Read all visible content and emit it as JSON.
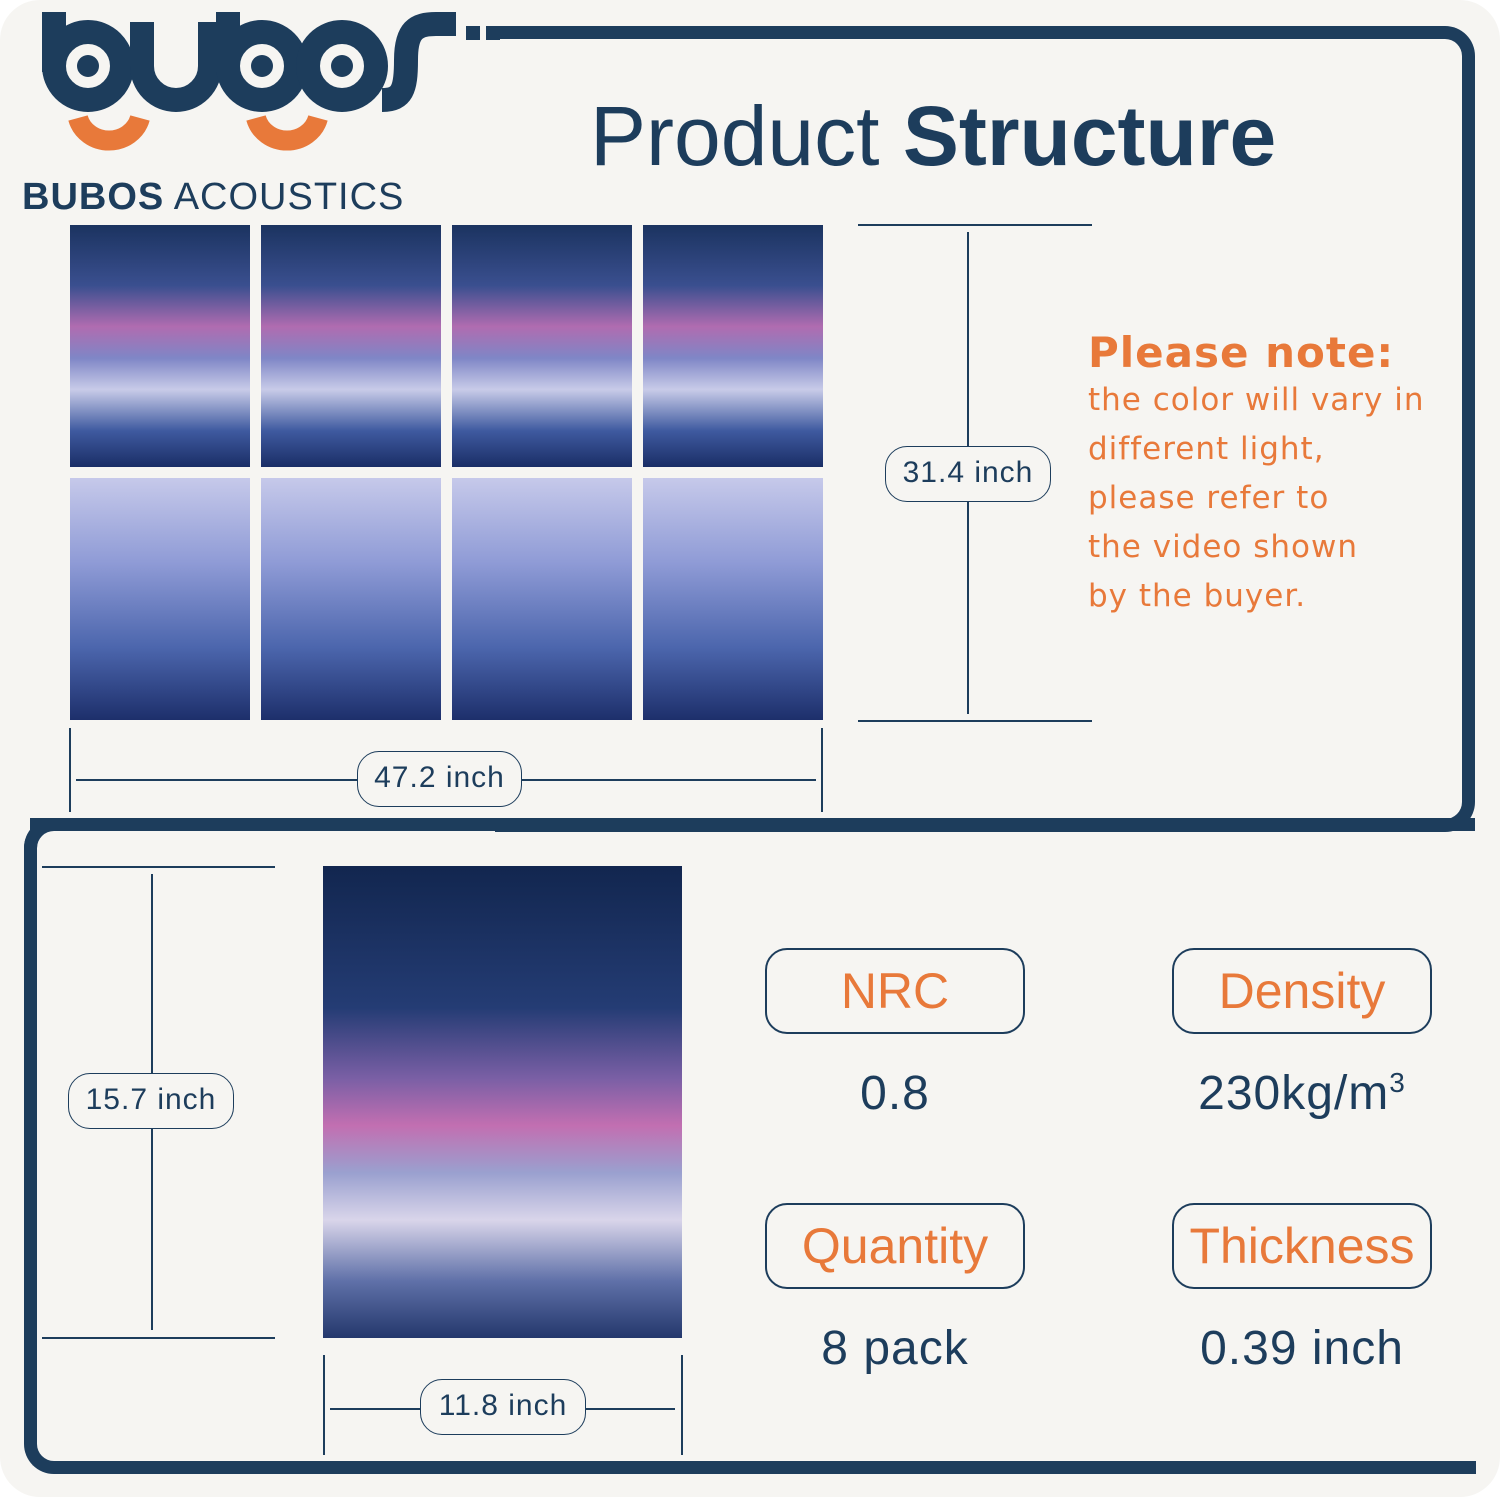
{
  "brand": {
    "logo_text": "bubos",
    "name_bold": "BUBOS",
    "name_light": "ACOUSTICS"
  },
  "title": {
    "light": "Product",
    "bold": "Structure"
  },
  "panel": {
    "width": "47.2 inch",
    "height": "31.4 inch",
    "tiles": 8
  },
  "note": {
    "heading": "Please note:",
    "lines": [
      "the color will vary in",
      "different light,",
      "please refer to",
      "the video shown",
      "by the buyer."
    ]
  },
  "single": {
    "height": "15.7 inch",
    "width": "11.8 inch"
  },
  "specs": [
    {
      "label": "NRC",
      "value": "0.8"
    },
    {
      "label": "Density",
      "value": "230kg/m",
      "sup": "3"
    },
    {
      "label": "Quantity",
      "value": "8 pack"
    },
    {
      "label": "Thickness",
      "value": "0.39 inch"
    }
  ],
  "colors": {
    "navy": "#1d3d5c",
    "orange": "#e8793a",
    "background": "#f6f5f2"
  }
}
